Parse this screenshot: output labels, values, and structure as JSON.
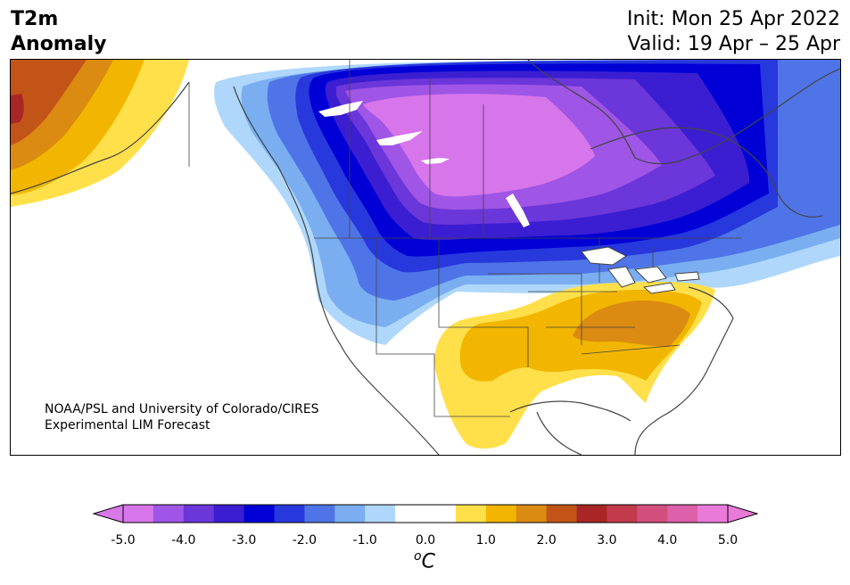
{
  "title": {
    "line1": "T2m",
    "line2": "Anomaly"
  },
  "dates": {
    "init": "Init: Mon 25 Apr 2022",
    "valid": "Valid: 19 Apr – 25 Apr"
  },
  "credit": {
    "line1": "NOAA/PSL and University of Colorado/CIRES",
    "line2": "Experimental LIM Forecast"
  },
  "colorbar": {
    "ticks": [
      "-5.0",
      "-4.0",
      "-3.0",
      "-2.0",
      "-1.0",
      "0.0",
      "1.0",
      "2.0",
      "3.0",
      "4.0",
      "5.0"
    ],
    "unit_base": "C",
    "unit_sup": "o",
    "low_extend_color": "#d77ae8",
    "high_extend_color": "#e97ad8",
    "colors": [
      "#d775ea",
      "#9f55e6",
      "#6b36da",
      "#3b1ed2",
      "#0000d6",
      "#2738dc",
      "#4f74e8",
      "#7aaef0",
      "#aed7fb",
      "#ffffff",
      "#ffffff",
      "#ffe04a",
      "#f2b600",
      "#db8a12",
      "#c25418",
      "#aa2626",
      "#c23a4c",
      "#d24e7c",
      "#dc60aa",
      "#e97ad8"
    ]
  },
  "legend_colors": {
    "cold_strong": "#d775ea",
    "cold_moderate": "#0000d6",
    "cold_light": "#aed7fb",
    "warm_light": "#ffe04a",
    "warm_moderate": "#db8a12",
    "warm_strong": "#aa2626"
  }
}
